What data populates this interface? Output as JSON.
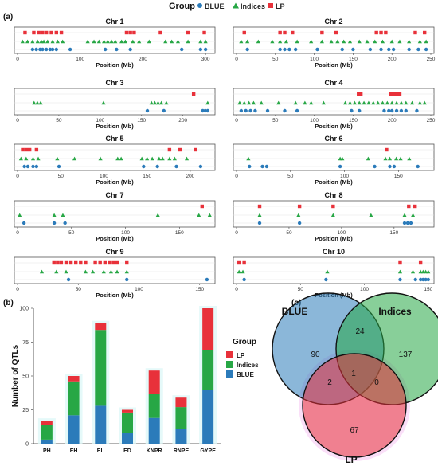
{
  "legend": {
    "title": "Group",
    "items": [
      {
        "label": "BLUE",
        "color": "#2b7bba",
        "shape": "circle"
      },
      {
        "label": "Indices",
        "color": "#27a745",
        "shape": "triangle"
      },
      {
        "label": "LP",
        "color": "#e8313a",
        "shape": "square"
      }
    ]
  },
  "panel_labels": {
    "a": "(a)",
    "b": "(b)",
    "c": "(c)"
  },
  "chart_data": [
    {
      "type": "scatter",
      "panel": "(a)",
      "xlabel": "Position (Mb)",
      "groups": [
        "LP",
        "Indices",
        "BLUE"
      ],
      "chromosomes": [
        {
          "title": "Chr 1",
          "xlim": [
            0,
            310
          ],
          "ticks": [
            0,
            100,
            200,
            300
          ],
          "LP": [
            12,
            26,
            34,
            40,
            46,
            54,
            62,
            70,
            174,
            180,
            186,
            228,
            272,
            298
          ],
          "Indices": [
            8,
            16,
            24,
            32,
            38,
            42,
            48,
            56,
            64,
            72,
            112,
            122,
            130,
            138,
            144,
            150,
            156,
            166,
            172,
            184,
            194,
            210,
            236,
            246,
            256,
            272,
            292,
            300
          ],
          "BLUE": [
            24,
            30,
            36,
            40,
            46,
            52,
            56,
            62,
            84,
            140,
            158,
            180,
            262,
            292,
            300
          ]
        },
        {
          "title": "Chr 2",
          "xlim": [
            0,
            250
          ],
          "ticks": [
            0,
            50,
            100,
            150,
            200,
            250
          ],
          "LP": [
            10,
            56,
            62,
            72,
            110,
            128,
            180,
            186,
            192,
            230,
            242
          ],
          "Indices": [
            6,
            14,
            28,
            46,
            56,
            64,
            78,
            96,
            110,
            122,
            130,
            138,
            146,
            158,
            168,
            178,
            188,
            200,
            210,
            222,
            236,
            244
          ],
          "BLUE": [
            14,
            56,
            62,
            68,
            76,
            104,
            136,
            150,
            172,
            186,
            196,
            202,
            222,
            234,
            244
          ]
        },
        {
          "title": "Chr 3",
          "xlim": [
            0,
            235
          ],
          "ticks": [
            0,
            50,
            100,
            150,
            200
          ],
          "LP": [
            213
          ],
          "Indices": [
            20,
            24,
            28,
            104,
            162,
            166,
            170,
            174,
            180,
            230
          ],
          "BLUE": [
            157,
            177,
            224,
            227,
            230
          ]
        },
        {
          "title": "Chr 4",
          "xlim": [
            0,
            250
          ],
          "ticks": [
            0,
            50,
            100,
            150,
            200,
            250
          ],
          "LP": [
            157,
            160,
            198,
            201,
            204,
            207,
            210
          ],
          "Indices": [
            4,
            10,
            16,
            22,
            32,
            54,
            76,
            88,
            96,
            112,
            140,
            146,
            152,
            158,
            164,
            170,
            176,
            182,
            188,
            194,
            200,
            206,
            212,
            218,
            226,
            236,
            242
          ],
          "BLUE": [
            6,
            12,
            18,
            24,
            40,
            62,
            78,
            148,
            158,
            190,
            196,
            200,
            206,
            212,
            218,
            232
          ]
        },
        {
          "title": "Chr 5",
          "xlim": [
            0,
            225
          ],
          "ticks": [
            0,
            50,
            100,
            150,
            200
          ],
          "LP": [
            6,
            10,
            14,
            22,
            176,
            188,
            206
          ],
          "Indices": [
            4,
            10,
            18,
            24,
            46,
            66,
            96,
            116,
            120,
            144,
            150,
            156,
            164,
            168,
            176,
            182,
            196
          ],
          "BLUE": [
            8,
            12,
            18,
            22,
            48,
            146,
            162,
            184,
            212
          ]
        },
        {
          "title": "Chr 6",
          "xlim": [
            0,
            180
          ],
          "ticks": [
            0,
            50,
            100,
            150
          ],
          "LP": [
            139
          ],
          "Indices": [
            11,
            96,
            98,
            122,
            138,
            142,
            148,
            152,
            160
          ],
          "BLUE": [
            12,
            24,
            28,
            96,
            128,
            142,
            146,
            168
          ]
        },
        {
          "title": "Chr 7",
          "xlim": [
            0,
            180
          ],
          "ticks": [
            0,
            50,
            100,
            150
          ],
          "LP": [
            171
          ],
          "Indices": [
            2,
            34,
            42,
            130,
            168,
            178
          ],
          "BLUE": [
            6,
            34,
            44
          ]
        },
        {
          "title": "Chr 8",
          "xlim": [
            0,
            185
          ],
          "ticks": [
            0,
            50,
            100,
            150
          ],
          "LP": [
            22,
            60,
            92,
            164,
            170
          ],
          "Indices": [
            22,
            59,
            92,
            128,
            160,
            168
          ],
          "BLUE": [
            22,
            60,
            160,
            163,
            166
          ]
        },
        {
          "title": "Chr 9",
          "xlim": [
            0,
            160
          ],
          "ticks": [
            0,
            50,
            100,
            150
          ],
          "LP": [
            30,
            33,
            36,
            40,
            44,
            48,
            52,
            56,
            64,
            68,
            72,
            76,
            79,
            82,
            90
          ],
          "Indices": [
            20,
            32,
            40,
            56,
            62,
            71,
            77,
            82,
            90
          ],
          "BLUE": [
            42,
            90,
            156
          ]
        },
        {
          "title": "Chr 10",
          "xlim": [
            0,
            152
          ],
          "ticks": [
            0,
            50,
            100,
            150
          ],
          "LP": [
            2,
            6,
            128,
            144
          ],
          "Indices": [
            2,
            5,
            71,
            128,
            138,
            144,
            146,
            148,
            150
          ],
          "BLUE": [
            6,
            70,
            128,
            140,
            144,
            146,
            148,
            150
          ]
        }
      ]
    },
    {
      "type": "bar",
      "panel": "(b)",
      "stacked": true,
      "ylabel": "Number of QTLs",
      "ylim": [
        0,
        100
      ],
      "yticks": [
        0,
        25,
        50,
        75,
        100
      ],
      "categories": [
        "PH",
        "EH",
        "EL",
        "ED",
        "KNPR",
        "RNPE",
        "GYPE"
      ],
      "series": [
        {
          "name": "BLUE",
          "color": "#2b7bba",
          "values": [
            3,
            21,
            28,
            8,
            19,
            11,
            40
          ]
        },
        {
          "name": "Indices",
          "color": "#27a745",
          "values": [
            11,
            25,
            56,
            15,
            18,
            16,
            29
          ]
        },
        {
          "name": "LP",
          "color": "#e8313a",
          "values": [
            3,
            4,
            5,
            2,
            17,
            7,
            31
          ]
        }
      ],
      "legend_title": "Group",
      "legend_items": [
        "LP",
        "Indices",
        "BLUE"
      ]
    },
    {
      "type": "venn",
      "panel": "(c)",
      "sets": [
        {
          "name": "BLUE",
          "color": "#2b7bba"
        },
        {
          "name": "Indices",
          "color": "#27a745"
        },
        {
          "name": "LP",
          "color": "#e8313a"
        }
      ],
      "regions": [
        {
          "sets": [
            "BLUE"
          ],
          "value": 90
        },
        {
          "sets": [
            "Indices"
          ],
          "value": 137
        },
        {
          "sets": [
            "LP"
          ],
          "value": 67
        },
        {
          "sets": [
            "BLUE",
            "Indices"
          ],
          "value": 24
        },
        {
          "sets": [
            "BLUE",
            "LP"
          ],
          "value": 2
        },
        {
          "sets": [
            "Indices",
            "LP"
          ],
          "value": 0
        },
        {
          "sets": [
            "BLUE",
            "Indices",
            "LP"
          ],
          "value": 1
        }
      ]
    }
  ]
}
